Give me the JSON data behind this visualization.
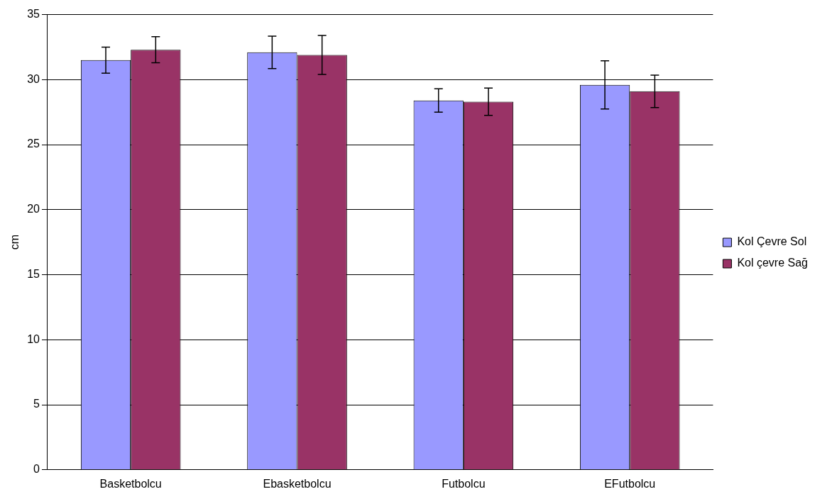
{
  "chart_data": {
    "type": "bar",
    "ylabel": "cm",
    "categories": [
      "Basketbolcu",
      "Ebasketbolcu",
      "Futbolcu",
      "EFutbolcu"
    ],
    "series": [
      {
        "name": "Kol Çevre Sol",
        "color": "#9999ff",
        "values": [
          31.5,
          32.1,
          28.4,
          29.6
        ],
        "errors": [
          1.0,
          1.25,
          0.9,
          1.85
        ]
      },
      {
        "name": "Kol çevre Sağ",
        "color": "#993366",
        "values": [
          32.3,
          31.9,
          28.3,
          29.1
        ],
        "errors": [
          1.0,
          1.5,
          1.05,
          1.25
        ]
      }
    ],
    "ylim": [
      0,
      35
    ],
    "yticks": [
      0,
      5,
      10,
      15,
      20,
      25,
      30,
      35
    ],
    "grid": "y",
    "legend": "right"
  }
}
